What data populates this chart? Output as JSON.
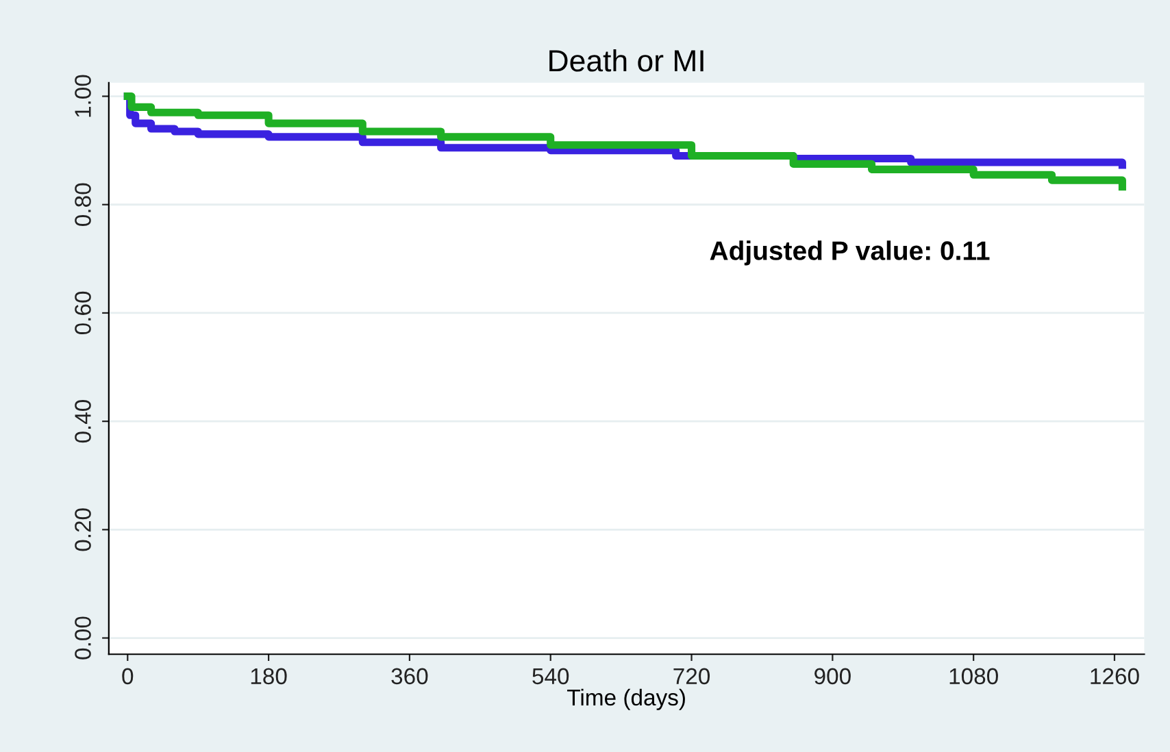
{
  "chart_data": {
    "type": "step",
    "title": "Death or MI",
    "xlabel": "Time (days)",
    "annotations": [
      "Adjusted P value: 0.11"
    ],
    "xlim": [
      -24,
      1298
    ],
    "xticks": [
      0,
      180,
      360,
      540,
      720,
      900,
      1080,
      1260
    ],
    "ylim": [
      -0.03,
      1.025
    ],
    "yticks": [
      {
        "value": 0,
        "label": "0.00"
      },
      {
        "value": 0.2,
        "label": "0.20"
      },
      {
        "value": 0.4,
        "label": "0.40"
      },
      {
        "value": 0.6,
        "label": "0.60"
      },
      {
        "value": 0.8,
        "label": "0.80"
      },
      {
        "value": 1,
        "label": "1.00"
      }
    ],
    "grid": "y",
    "line_style": "solid",
    "marker": "none",
    "series": [
      {
        "color": "#3a22e0",
        "x": [
          0,
          3,
          10,
          30,
          60,
          90,
          180,
          300,
          400,
          540,
          700,
          850,
          1000,
          1270
        ],
        "values": [
          1.0,
          0.965,
          0.95,
          0.94,
          0.935,
          0.93,
          0.925,
          0.915,
          0.905,
          0.9,
          0.89,
          0.885,
          0.878,
          0.873
        ]
      },
      {
        "color": "#1fb025",
        "x": [
          0,
          5,
          30,
          90,
          180,
          300,
          400,
          540,
          720,
          850,
          950,
          1080,
          1180,
          1270
        ],
        "values": [
          1.0,
          0.98,
          0.97,
          0.965,
          0.95,
          0.935,
          0.925,
          0.91,
          0.89,
          0.875,
          0.865,
          0.855,
          0.845,
          0.833
        ]
      }
    ]
  }
}
